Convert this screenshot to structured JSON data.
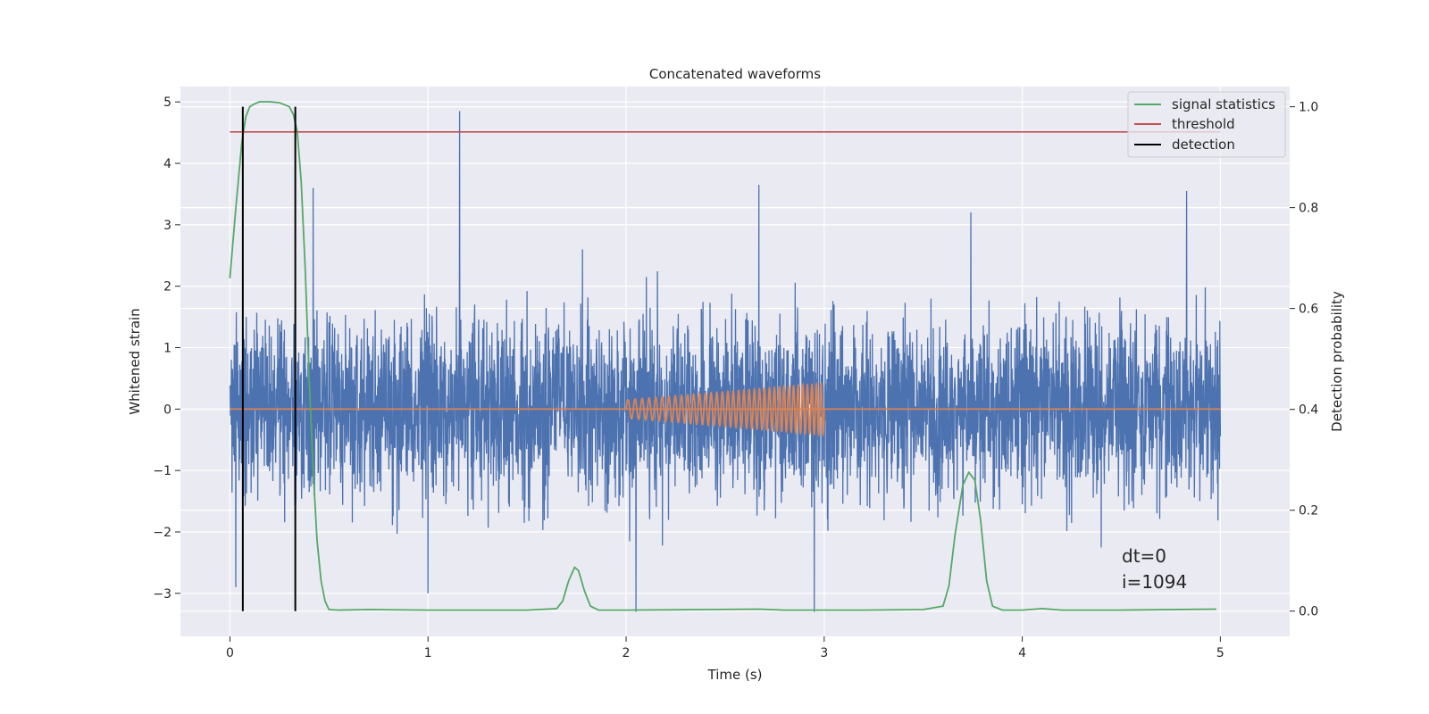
{
  "chart_data": {
    "type": "line",
    "title": "Concatenated waveforms",
    "xlabel": "Time (s)",
    "ylabel_left": "Whitened strain",
    "ylabel_right": "Detection probability",
    "xlim": [
      -0.25,
      5.35
    ],
    "ylim_left": [
      -3.7,
      5.25
    ],
    "ylim_right": [
      -0.05,
      1.04
    ],
    "xticks": [
      0,
      1,
      2,
      3,
      4,
      5
    ],
    "xtick_labels": [
      "0",
      "1",
      "2",
      "3",
      "4",
      "5"
    ],
    "yticks_left": [
      -3,
      -2,
      -1,
      0,
      1,
      2,
      3,
      4,
      5
    ],
    "ytick_labels_left": [
      "−3",
      "−2",
      "−1",
      "0",
      "1",
      "2",
      "3",
      "4",
      "5"
    ],
    "yticks_right": [
      0.0,
      0.2,
      0.4,
      0.6,
      0.8,
      1.0
    ],
    "ytick_labels_right": [
      "0.0",
      "0.2",
      "0.4",
      "0.6",
      "0.8",
      "1.0"
    ],
    "grid": true,
    "legend_position": "upper right",
    "series": [
      {
        "kind": "noise",
        "color": "#4c72b0",
        "x_range": [
          0,
          5
        ],
        "typical_amplitude": 1.4,
        "spikes": [
          {
            "x": 1.16,
            "y": 4.85
          },
          {
            "x": 0.42,
            "y": 3.6
          },
          {
            "x": 2.67,
            "y": 3.65
          },
          {
            "x": 3.74,
            "y": 3.2
          },
          {
            "x": 4.83,
            "y": 3.55
          },
          {
            "x": 1.78,
            "y": 2.6
          },
          {
            "x": 2.05,
            "y": -3.3
          },
          {
            "x": 2.95,
            "y": -3.3
          },
          {
            "x": 1.0,
            "y": -3.0
          },
          {
            "x": 0.03,
            "y": -2.9
          }
        ]
      },
      {
        "kind": "chirp",
        "color": "#dd8452",
        "x_range": [
          2.0,
          3.0
        ],
        "amplitude_start": 0.15,
        "amplitude_end": 0.42,
        "cycles": 36
      },
      {
        "name": "signal statistics",
        "color": "#55a868",
        "axis": "right",
        "x": [
          0.0,
          0.03,
          0.06,
          0.08,
          0.1,
          0.12,
          0.15,
          0.2,
          0.25,
          0.3,
          0.32,
          0.34,
          0.36,
          0.38,
          0.4,
          0.42,
          0.44,
          0.46,
          0.48,
          0.5,
          0.55,
          0.7,
          1.0,
          1.5,
          1.65,
          1.68,
          1.71,
          1.74,
          1.76,
          1.79,
          1.82,
          1.86,
          1.9,
          2.0,
          2.4,
          2.67,
          2.8,
          3.2,
          3.5,
          3.6,
          3.63,
          3.66,
          3.7,
          3.73,
          3.76,
          3.79,
          3.82,
          3.85,
          3.9,
          4.0,
          4.1,
          4.2,
          4.5,
          4.98
        ],
        "y": [
          0.66,
          0.8,
          0.93,
          0.98,
          1.0,
          1.005,
          1.01,
          1.01,
          1.008,
          1.0,
          0.985,
          0.95,
          0.85,
          0.68,
          0.46,
          0.28,
          0.14,
          0.06,
          0.02,
          0.003,
          0.002,
          0.003,
          0.002,
          0.002,
          0.005,
          0.02,
          0.06,
          0.087,
          0.08,
          0.04,
          0.01,
          0.002,
          0.002,
          0.002,
          0.003,
          0.004,
          0.002,
          0.002,
          0.003,
          0.01,
          0.05,
          0.15,
          0.25,
          0.275,
          0.26,
          0.18,
          0.06,
          0.01,
          0.002,
          0.002,
          0.005,
          0.002,
          0.002,
          0.004
        ]
      },
      {
        "name": "threshold",
        "color": "#c44e52",
        "axis": "right",
        "x": [
          0,
          5
        ],
        "y": [
          0.95,
          0.95
        ]
      },
      {
        "name": "detection",
        "color": "#000000",
        "axis": "right",
        "vlines": [
          0.065,
          0.33
        ],
        "y_range": [
          0.0,
          1.0
        ]
      }
    ],
    "annotation": {
      "lines": [
        "dt=0",
        "i=1094"
      ]
    }
  }
}
